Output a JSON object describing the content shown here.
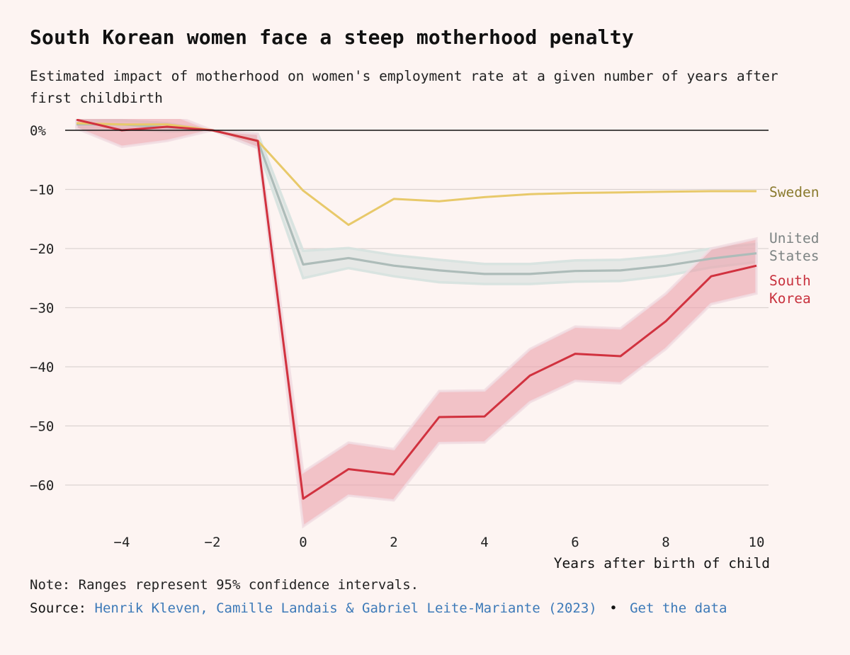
{
  "header": {
    "title": "South Korean women face a steep motherhood penalty",
    "subtitle": "Estimated impact of motherhood on women's employment rate at a given number of years after first childbirth"
  },
  "footer": {
    "note": "Note: Ranges represent 95% confidence intervals.",
    "source_label": "Source:",
    "source_link": "Henrik Kleven, Camille Landais & Gabriel Leite-Mariante (2023)",
    "separator": "•",
    "data_link": "Get the data"
  },
  "chart_data": {
    "type": "line",
    "xlabel": "Years after birth of child",
    "ylabel": "",
    "xlim": [
      -5,
      10
    ],
    "ylim": [
      -69,
      2
    ],
    "x_ticks": [
      -4,
      -2,
      0,
      2,
      4,
      6,
      8,
      10
    ],
    "x_tick_labels": [
      "−4",
      "−2",
      "0",
      "2",
      "4",
      "6",
      "8",
      "10"
    ],
    "y_ticks": [
      0,
      -10,
      -20,
      -30,
      -40,
      -50,
      -60
    ],
    "y_tick_labels": [
      "0%",
      "−10",
      "−20",
      "−30",
      "−40",
      "−50",
      "−60"
    ],
    "grid": true,
    "x": [
      -5,
      -4,
      -3,
      -2,
      -1,
      0,
      1,
      2,
      3,
      4,
      5,
      6,
      7,
      8,
      9,
      10
    ],
    "series": [
      {
        "name": "Sweden",
        "label_lines": [
          "Sweden"
        ],
        "color": "#e8c96a",
        "label_color": "#8a7a2e",
        "values": [
          1.2,
          1.0,
          1.0,
          0.0,
          -1.8,
          -10.2,
          -16.0,
          -11.6,
          -12.0,
          -11.3,
          -10.8,
          -10.6,
          -10.5,
          -10.4,
          -10.3,
          -10.3
        ],
        "ci_low": [
          0.8,
          0.6,
          0.6,
          0.0,
          -2.3,
          -10.7,
          -16.5,
          -12.1,
          -12.5,
          -11.8,
          -11.3,
          -11.1,
          -11.0,
          -10.9,
          -10.8,
          -10.8
        ],
        "ci_high": [
          1.6,
          1.4,
          1.4,
          0.0,
          -1.3,
          -9.7,
          -15.5,
          -11.1,
          -11.5,
          -10.8,
          -10.3,
          -10.1,
          -10.0,
          -9.9,
          -9.8,
          -9.8
        ]
      },
      {
        "name": "United States",
        "label_lines": [
          "United",
          "States"
        ],
        "color": "#adbcb9",
        "band_color": "#d4dfdc",
        "label_color": "#7d8484",
        "values": [
          1.0,
          1.0,
          0.5,
          0.0,
          -1.8,
          -22.7,
          -21.6,
          -22.9,
          -23.7,
          -24.3,
          -24.3,
          -23.8,
          -23.7,
          -22.9,
          -21.7,
          -20.8
        ],
        "ci_low": [
          0.3,
          0.3,
          -0.2,
          0.0,
          -3.0,
          -25.0,
          -23.3,
          -24.7,
          -25.7,
          -26.0,
          -26.0,
          -25.6,
          -25.5,
          -24.6,
          -23.2,
          -22.3
        ],
        "ci_high": [
          1.7,
          1.7,
          1.2,
          0.0,
          -0.6,
          -20.4,
          -19.9,
          -21.1,
          -21.9,
          -22.6,
          -22.6,
          -22.0,
          -21.9,
          -21.2,
          -20.0,
          -19.2
        ]
      },
      {
        "name": "South Korea",
        "label_lines": [
          "South",
          "Korea"
        ],
        "color": "#d1323f",
        "band_color": "#eba3ad",
        "label_color": "#c8323e",
        "values": [
          1.8,
          0.0,
          0.6,
          0.0,
          -1.8,
          -62.3,
          -57.3,
          -58.2,
          -48.5,
          -48.4,
          -41.5,
          -37.8,
          -38.2,
          -32.3,
          -24.7,
          -22.9
        ],
        "ci_low": [
          0.3,
          -2.8,
          -1.8,
          0.0,
          -3.0,
          -67.0,
          -61.8,
          -62.6,
          -52.9,
          -52.8,
          -46.0,
          -42.4,
          -42.8,
          -37.0,
          -29.4,
          -27.6
        ],
        "ci_high": [
          3.5,
          2.6,
          3.0,
          0.0,
          -0.6,
          -57.8,
          -52.8,
          -53.9,
          -44.1,
          -44.0,
          -37.0,
          -33.2,
          -33.5,
          -27.6,
          -20.0,
          -18.3
        ]
      }
    ]
  }
}
